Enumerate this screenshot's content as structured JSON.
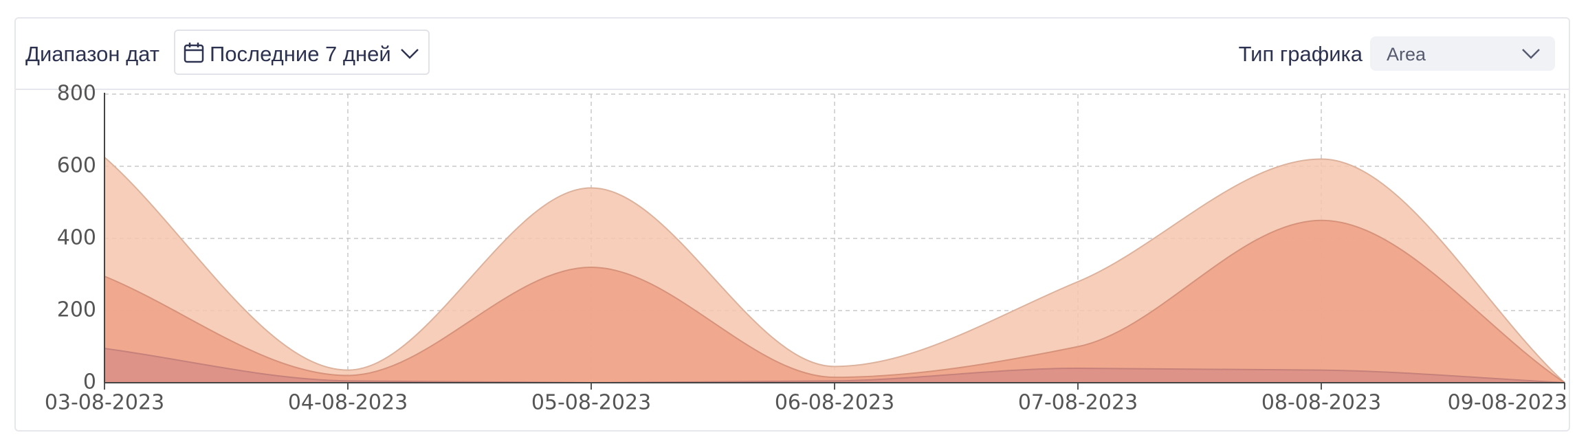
{
  "controls": {
    "date_range_label": "Диапазон дат",
    "date_range_value": "Последние 7 дней",
    "chart_type_label": "Тип графика",
    "chart_type_value": "Area"
  },
  "chart_data": {
    "type": "area",
    "categories": [
      "03-08-2023",
      "04-08-2023",
      "05-08-2023",
      "06-08-2023",
      "07-08-2023",
      "08-08-2023",
      "09-08-2023"
    ],
    "series": [
      {
        "color": "#f5c6ae",
        "values": [
          625,
          35,
          540,
          45,
          280,
          620,
          0
        ]
      },
      {
        "color": "#eea287",
        "values": [
          295,
          20,
          320,
          15,
          100,
          450,
          0
        ]
      },
      {
        "color": "#db8f88",
        "values": [
          95,
          5,
          0,
          5,
          40,
          35,
          0
        ]
      }
    ],
    "ylim": [
      0,
      800
    ],
    "yticks": [
      0,
      200,
      400,
      600,
      800
    ],
    "grid": true
  }
}
